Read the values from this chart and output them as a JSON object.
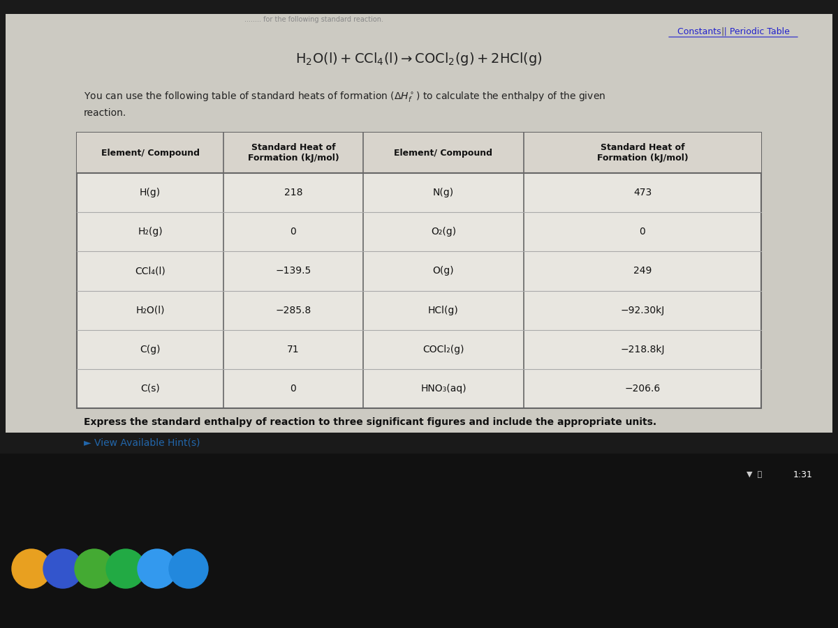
{
  "bg_color": "#1a1a1a",
  "content_bg": "#d4d0c8",
  "table_bg": "#e8e4dc",
  "header_bg": "#c8c4bc",
  "title_link": "Constants | Periodic Table",
  "reaction": "H₂O(l) + CCl₄(l)→COCl₂(g) + 2HCl(g)",
  "description": "You can use the following table of standard heats of formation (ΔH°f) to calculate the enthalpy of the given\nreaction.",
  "col_headers": [
    "Element/ Compound",
    "Standard Heat of\nFormation (kJ/mol)",
    "Element/ Compound",
    "Standard Heat of\nFormation (kJ/mol)"
  ],
  "left_col1": [
    "H(g)",
    "H₂(g)",
    "CCl₄(l)",
    "H₂O(l)",
    "C(g)",
    "C(s)"
  ],
  "left_col2": [
    "218",
    "0",
    "−139.5",
    "−285.8",
    "71",
    "0"
  ],
  "right_col1": [
    "N(g)",
    "O₂(g)",
    "O(g)",
    "HCl(g)",
    "COCl₂(g)",
    "HNO₃(aq)"
  ],
  "right_col2": [
    "473",
    "0",
    "249",
    "−92.30kJ",
    "−218.8kJ",
    "−206.6"
  ],
  "footer_text": "Express the standard enthalpy of reaction to three significant figures and include the appropriate units.",
  "hint_text": "► View Available Hint(s)",
  "status_text": "1:31"
}
